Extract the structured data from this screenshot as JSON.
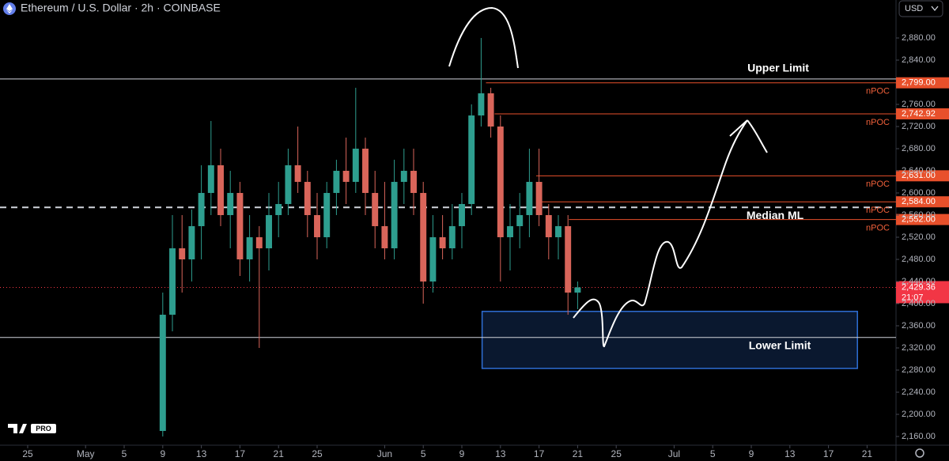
{
  "chart_data": {
    "type": "candlestick",
    "title": "Ethereum / U.S. Dollar · 2h · COINBASE",
    "currency": "USD",
    "logo": "PRO",
    "x": [
      14,
      15,
      16,
      17,
      18,
      19,
      20,
      21,
      22,
      23,
      24,
      25,
      26,
      27,
      28,
      29,
      30,
      31,
      32,
      33,
      34,
      35,
      36,
      37,
      38,
      39,
      40,
      41,
      42,
      43,
      44,
      45,
      46,
      47,
      48,
      49,
      50,
      51,
      52,
      53,
      54,
      55,
      56,
      57
    ],
    "open": [
      2170,
      2380,
      2500,
      2480,
      2540,
      2600,
      2650,
      2560,
      2600,
      2480,
      2520,
      2500,
      2560,
      2580,
      2650,
      2620,
      2560,
      2520,
      2600,
      2640,
      2620,
      2680,
      2600,
      2540,
      2500,
      2620,
      2640,
      2600,
      2440,
      2520,
      2500,
      2540,
      2580,
      2740,
      2780,
      2720,
      2520,
      2540,
      2560,
      2620,
      2560,
      2520,
      2540,
      2420
    ],
    "high": [
      2420,
      2560,
      2560,
      2570,
      2650,
      2730,
      2680,
      2640,
      2620,
      2560,
      2540,
      2600,
      2620,
      2680,
      2720,
      2640,
      2600,
      2620,
      2660,
      2700,
      2790,
      2700,
      2640,
      2620,
      2660,
      2680,
      2680,
      2620,
      2560,
      2560,
      2580,
      2600,
      2760,
      2880,
      2790,
      2740,
      2580,
      2600,
      2680,
      2680,
      2580,
      2560,
      2560,
      2440
    ],
    "low": [
      2160,
      2350,
      2420,
      2440,
      2480,
      2560,
      2540,
      2500,
      2450,
      2440,
      2320,
      2460,
      2520,
      2560,
      2600,
      2520,
      2480,
      2500,
      2560,
      2580,
      2600,
      2560,
      2500,
      2480,
      2480,
      2580,
      2560,
      2400,
      2420,
      2480,
      2480,
      2500,
      2560,
      2720,
      2700,
      2440,
      2460,
      2500,
      2520,
      2540,
      2480,
      2480,
      2380,
      2390
    ],
    "close": [
      2380,
      2500,
      2480,
      2540,
      2600,
      2650,
      2560,
      2600,
      2480,
      2520,
      2500,
      2560,
      2580,
      2650,
      2620,
      2560,
      2520,
      2600,
      2640,
      2620,
      2680,
      2600,
      2540,
      2500,
      2620,
      2640,
      2600,
      2440,
      2520,
      2500,
      2540,
      2580,
      2740,
      2780,
      2720,
      2520,
      2540,
      2560,
      2620,
      2560,
      2520,
      2540,
      2420,
      2429.36
    ],
    "up_color": "#2e9e8f",
    "down_color": "#d9655a",
    "xlim": [
      -2.87,
      90
    ],
    "ylim": [
      2144.3,
      2948.6
    ],
    "xticks": [
      {
        "value": 0,
        "label": "25"
      },
      {
        "value": 6,
        "label": "May"
      },
      {
        "value": 10,
        "label": "5"
      },
      {
        "value": 14,
        "label": "9"
      },
      {
        "value": 18,
        "label": "13"
      },
      {
        "value": 22,
        "label": "17"
      },
      {
        "value": 26,
        "label": "21"
      },
      {
        "value": 30,
        "label": "25"
      },
      {
        "value": 37,
        "label": "Jun"
      },
      {
        "value": 41,
        "label": "5"
      },
      {
        "value": 45,
        "label": "9"
      },
      {
        "value": 49,
        "label": "13"
      },
      {
        "value": 53,
        "label": "17"
      },
      {
        "value": 57,
        "label": "21"
      },
      {
        "value": 61,
        "label": "25"
      },
      {
        "value": 67,
        "label": "Jul"
      },
      {
        "value": 71,
        "label": "5"
      },
      {
        "value": 75,
        "label": "9"
      },
      {
        "value": 79,
        "label": "13"
      },
      {
        "value": 83,
        "label": "17"
      },
      {
        "value": 87,
        "label": "21"
      }
    ],
    "yticks": [
      {
        "value": 2880,
        "label": "2,880.00"
      },
      {
        "value": 2840,
        "label": "2,840.00"
      },
      {
        "value": 2760,
        "label": "2,760.00"
      },
      {
        "value": 2720,
        "label": "2,720.00"
      },
      {
        "value": 2680,
        "label": "2,680.00"
      },
      {
        "value": 2640,
        "label": "2,640.00"
      },
      {
        "value": 2600,
        "label": "2,600.00"
      },
      {
        "value": 2560,
        "label": "2,560.00"
      },
      {
        "value": 2520,
        "label": "2,520.00"
      },
      {
        "value": 2480,
        "label": "2,480.00"
      },
      {
        "value": 2440,
        "label": "2,440.00"
      },
      {
        "value": 2400,
        "label": "2,400.00"
      },
      {
        "value": 2360,
        "label": "2,360.00"
      },
      {
        "value": 2320,
        "label": "2,320.00"
      },
      {
        "value": 2280,
        "label": "2,280.00"
      },
      {
        "value": 2240,
        "label": "2,240.00"
      },
      {
        "value": 2200,
        "label": "2,200.00"
      },
      {
        "value": 2160,
        "label": "2,160.00"
      }
    ],
    "levels": [
      {
        "value": 2799,
        "label": "2,799.00",
        "name": "nPOC",
        "start": 47.5
      },
      {
        "value": 2742.92,
        "label": "2,742.92",
        "name": "nPOC",
        "start": 48.4
      },
      {
        "value": 2631,
        "label": "2,631.00",
        "name": "nPOC",
        "start": 52.7
      },
      {
        "value": 2584,
        "label": "2,584.00",
        "name": "nPOC",
        "start": 52.9
      },
      {
        "value": 2552,
        "label": "2,552.00",
        "name": "nPOC",
        "start": 56.1
      }
    ],
    "level_color": "#e8502b",
    "lines": [
      {
        "name": "Upper Limit",
        "value": 2806,
        "style": "solid"
      },
      {
        "name": "Median ML",
        "value": 2574,
        "style": "dashed"
      },
      {
        "name": "Lower Limit",
        "value": 2339,
        "style": "solid"
      }
    ],
    "zone": {
      "label": "Lower Limit",
      "x": [
        47.1,
        86
      ],
      "y": [
        2283,
        2386
      ],
      "color": "#2f6fd6"
    },
    "last": {
      "value": 2429.36,
      "label": "2,429.36",
      "countdown": "21:07",
      "color": "#f23645"
    }
  }
}
